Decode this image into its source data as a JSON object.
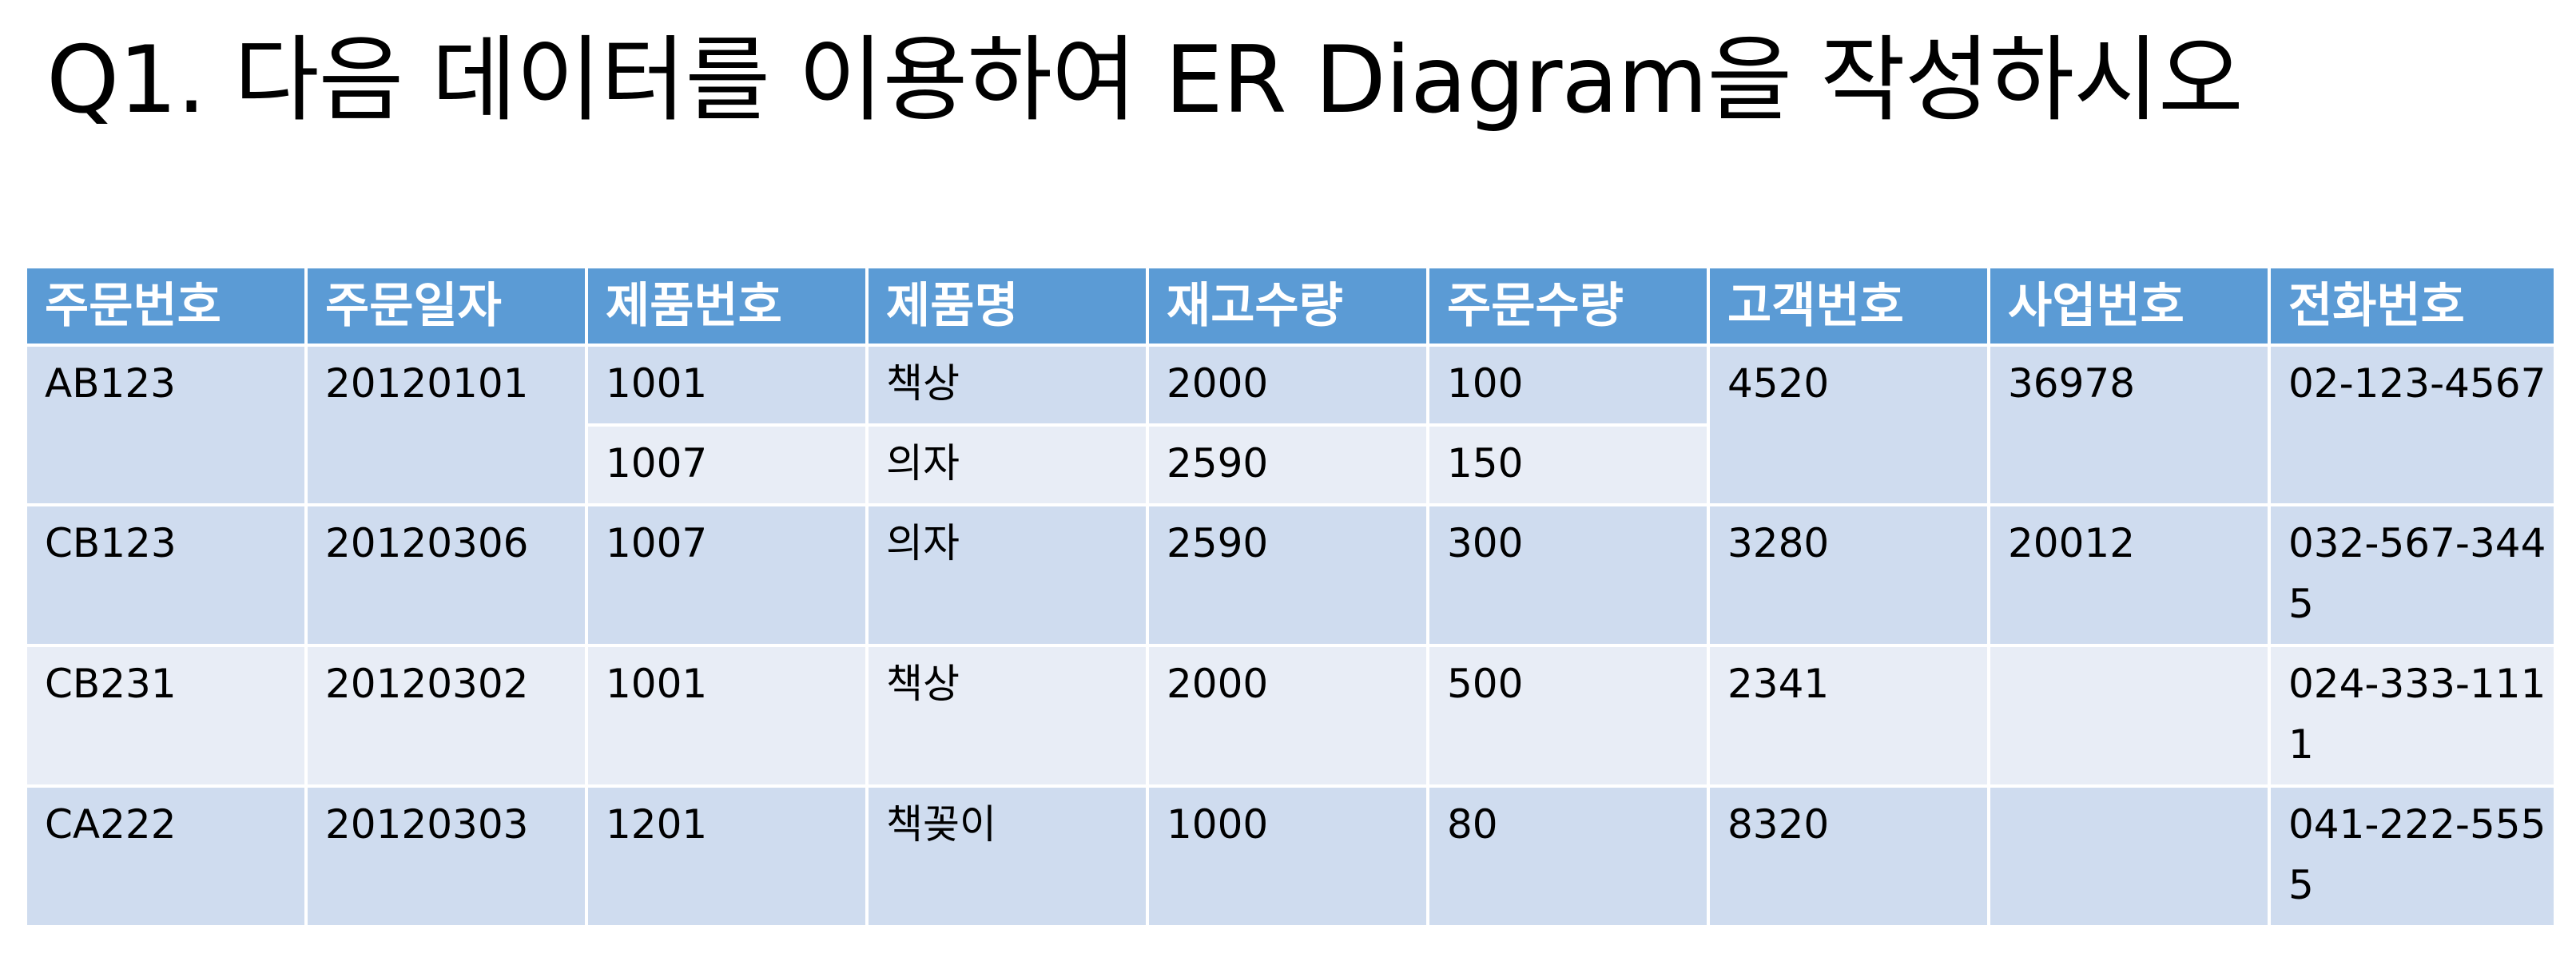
{
  "title": "Q1. 다음 데이터를 이용하여 ER Diagram을 작성하시오",
  "table": {
    "headers": [
      "주문번호",
      "주문일자",
      "제품번호",
      "제품명",
      "재고수량",
      "주문수량",
      "고객번호",
      "사업번호",
      "전화번호"
    ],
    "orders": [
      {
        "order_no": "AB123",
        "order_date": "20120101",
        "customer_no": "4520",
        "business_no": "36978",
        "phone": "02-123-4567",
        "items": [
          {
            "product_no": "1001",
            "product_name": "책상",
            "stock": "2000",
            "qty": "100"
          },
          {
            "product_no": "1007",
            "product_name": "의자",
            "stock": "2590",
            "qty": "150"
          }
        ]
      },
      {
        "order_no": "CB123",
        "order_date": "20120306",
        "customer_no": "3280",
        "business_no": "20012",
        "phone": "032-567-3445",
        "items": [
          {
            "product_no": "1007",
            "product_name": "의자",
            "stock": "2590",
            "qty": "300"
          }
        ]
      },
      {
        "order_no": "CB231",
        "order_date": "20120302",
        "customer_no": "2341",
        "business_no": "",
        "phone": "024-333-1111",
        "items": [
          {
            "product_no": "1001",
            "product_name": "책상",
            "stock": "2000",
            "qty": "500"
          }
        ]
      },
      {
        "order_no": "CA222",
        "order_date": "20120303",
        "customer_no": "8320",
        "business_no": "",
        "phone": "041-222-5555",
        "items": [
          {
            "product_no": "1201",
            "product_name": "책꽂이",
            "stock": "1000",
            "qty": "80"
          }
        ]
      }
    ]
  },
  "colors": {
    "header_bg": "#5b9bd5",
    "row_dark": "#cfdcef",
    "row_light": "#e8edf6"
  }
}
